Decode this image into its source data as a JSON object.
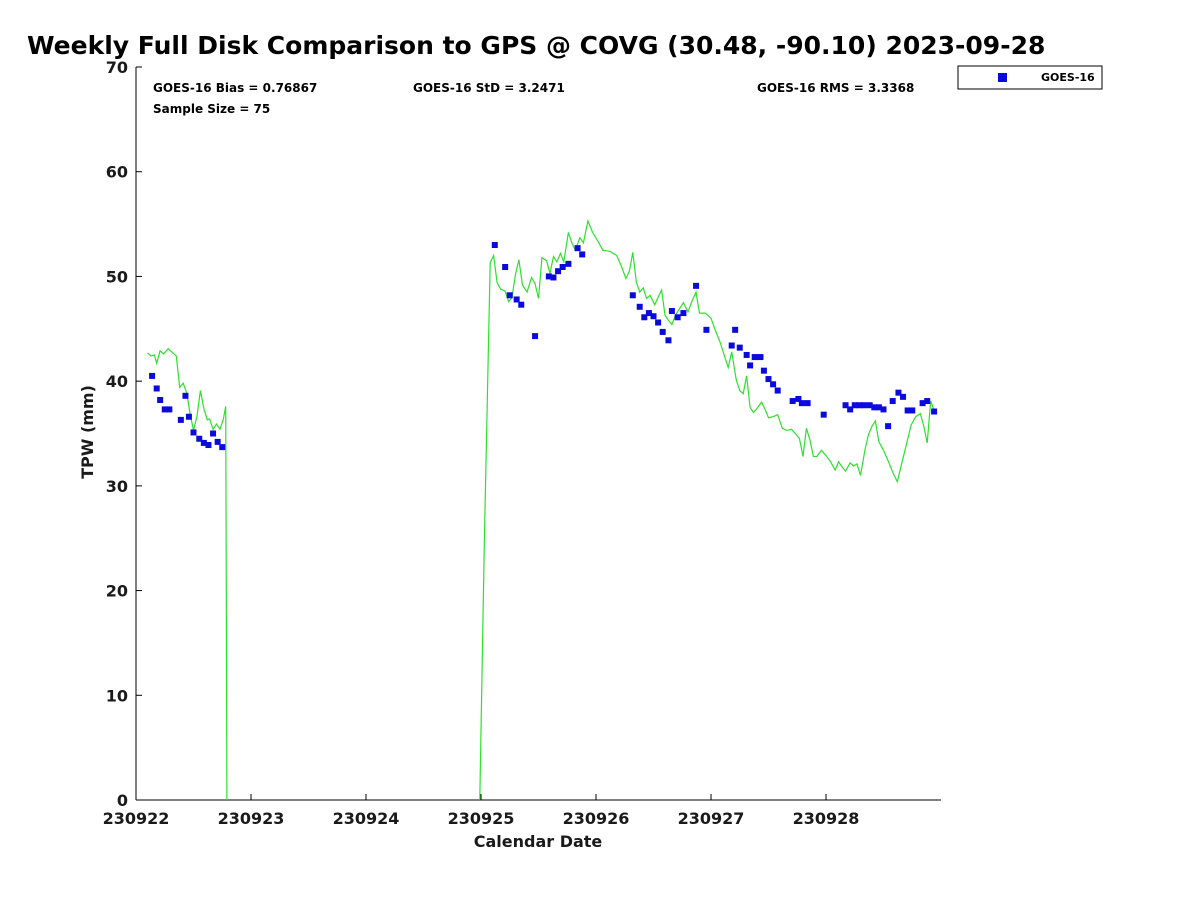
{
  "chart_data": {
    "type": "scatter",
    "title": "Weekly Full Disk Comparison to GPS @ COVG (30.48, -90.10) 2023-09-28",
    "xlabel": "Calendar Date",
    "ylabel": "TPW (mm)",
    "xlim": [
      230922,
      230929
    ],
    "ylim": [
      0,
      70
    ],
    "xticks": [
      230922,
      230923,
      230924,
      230925,
      230926,
      230927,
      230928
    ],
    "xtick_labels": [
      "230922",
      "230923",
      "230924",
      "230925",
      "230926",
      "230927",
      "230928"
    ],
    "yticks": [
      0,
      10,
      20,
      30,
      40,
      50,
      60,
      70
    ],
    "ytick_labels": [
      "0",
      "10",
      "20",
      "30",
      "40",
      "50",
      "60",
      "70"
    ],
    "grid": false,
    "legend_position": "top-right",
    "stats": {
      "bias": "GOES-16 Bias = 0.76867",
      "std": "GOES-16 StD = 3.2471",
      "rms": "GOES-16 RMS = 3.3368",
      "sample": "Sample Size = 75"
    },
    "series": [
      {
        "name": "GOES-16",
        "kind": "scatter",
        "marker": "square",
        "color": "#0a0ae0",
        "points": [
          [
            230922.14,
            40.5
          ],
          [
            230922.18,
            39.3
          ],
          [
            230922.21,
            38.2
          ],
          [
            230922.25,
            37.3
          ],
          [
            230922.29,
            37.3
          ],
          [
            230922.39,
            36.3
          ],
          [
            230922.43,
            38.6
          ],
          [
            230922.46,
            36.6
          ],
          [
            230922.5,
            35.1
          ],
          [
            230922.55,
            34.5
          ],
          [
            230922.59,
            34.1
          ],
          [
            230922.63,
            33.9
          ],
          [
            230922.67,
            35.0
          ],
          [
            230922.71,
            34.2
          ],
          [
            230922.75,
            33.7
          ],
          [
            230925.12,
            53.0
          ],
          [
            230925.21,
            50.9
          ],
          [
            230925.25,
            48.2
          ],
          [
            230925.31,
            47.8
          ],
          [
            230925.35,
            47.3
          ],
          [
            230925.47,
            44.3
          ],
          [
            230925.59,
            50.0
          ],
          [
            230925.63,
            49.9
          ],
          [
            230925.67,
            50.5
          ],
          [
            230925.71,
            50.9
          ],
          [
            230925.76,
            51.2
          ],
          [
            230925.84,
            52.7
          ],
          [
            230925.88,
            52.1
          ],
          [
            230926.32,
            48.2
          ],
          [
            230926.38,
            47.1
          ],
          [
            230926.42,
            46.1
          ],
          [
            230926.46,
            46.5
          ],
          [
            230926.5,
            46.2
          ],
          [
            230926.54,
            45.6
          ],
          [
            230926.58,
            44.7
          ],
          [
            230926.63,
            43.9
          ],
          [
            230926.66,
            46.7
          ],
          [
            230926.71,
            46.1
          ],
          [
            230926.76,
            46.5
          ],
          [
            230926.87,
            49.1
          ],
          [
            230926.96,
            44.9
          ],
          [
            230927.18,
            43.4
          ],
          [
            230927.21,
            44.9
          ],
          [
            230927.25,
            43.2
          ],
          [
            230927.31,
            42.5
          ],
          [
            230927.34,
            41.5
          ],
          [
            230927.38,
            42.3
          ],
          [
            230927.43,
            42.3
          ],
          [
            230927.46,
            41.0
          ],
          [
            230927.5,
            40.2
          ],
          [
            230927.54,
            39.7
          ],
          [
            230927.58,
            39.1
          ],
          [
            230927.71,
            38.1
          ],
          [
            230927.76,
            38.3
          ],
          [
            230927.79,
            37.9
          ],
          [
            230927.84,
            37.9
          ],
          [
            230927.98,
            36.8
          ],
          [
            230928.17,
            37.7
          ],
          [
            230928.21,
            37.3
          ],
          [
            230928.25,
            37.7
          ],
          [
            230928.29,
            37.7
          ],
          [
            230928.33,
            37.7
          ],
          [
            230928.38,
            37.7
          ],
          [
            230928.42,
            37.5
          ],
          [
            230928.46,
            37.5
          ],
          [
            230928.5,
            37.3
          ],
          [
            230928.54,
            35.7
          ],
          [
            230928.58,
            38.1
          ],
          [
            230928.63,
            38.9
          ],
          [
            230928.67,
            38.5
          ],
          [
            230928.71,
            37.2
          ],
          [
            230928.75,
            37.2
          ],
          [
            230928.84,
            37.9
          ],
          [
            230928.88,
            38.1
          ],
          [
            230928.94,
            37.1
          ]
        ]
      },
      {
        "kind": "line",
        "color": "#2ee02e",
        "segments": [
          [
            [
              230922.1,
              42.7
            ],
            [
              230922.13,
              42.4
            ],
            [
              230922.16,
              42.5
            ],
            [
              230922.18,
              41.7
            ],
            [
              230922.21,
              42.9
            ],
            [
              230922.24,
              42.6
            ],
            [
              230922.28,
              43.1
            ],
            [
              230922.31,
              42.8
            ],
            [
              230922.35,
              42.4
            ],
            [
              230922.38,
              39.4
            ],
            [
              230922.41,
              39.8
            ],
            [
              230922.44,
              38.9
            ],
            [
              230922.47,
              36.9
            ],
            [
              230922.5,
              35.3
            ],
            [
              230922.53,
              36.6
            ],
            [
              230922.56,
              39.1
            ],
            [
              230922.59,
              37.4
            ],
            [
              230922.62,
              36.3
            ],
            [
              230922.64,
              36.4
            ],
            [
              230922.67,
              35.4
            ],
            [
              230922.7,
              35.9
            ],
            [
              230922.73,
              35.4
            ],
            [
              230922.76,
              36.4
            ],
            [
              230922.78,
              37.6
            ],
            [
              230922.785,
              20.0
            ],
            [
              230922.79,
              0.0
            ]
          ],
          [
            [
              230924.99,
              0.0
            ],
            [
              230925.03,
              25.0
            ],
            [
              230925.08,
              51.3
            ],
            [
              230925.11,
              52.0
            ],
            [
              230925.14,
              49.4
            ],
            [
              230925.17,
              48.8
            ],
            [
              230925.21,
              48.6
            ],
            [
              230925.24,
              47.6
            ],
            [
              230925.27,
              48.0
            ],
            [
              230925.3,
              50.2
            ],
            [
              230925.33,
              51.6
            ],
            [
              230925.36,
              49.2
            ],
            [
              230925.4,
              48.5
            ],
            [
              230925.44,
              49.9
            ],
            [
              230925.47,
              49.3
            ],
            [
              230925.5,
              47.9
            ],
            [
              230925.53,
              51.8
            ],
            [
              230925.57,
              51.5
            ],
            [
              230925.6,
              50.3
            ],
            [
              230925.63,
              51.9
            ],
            [
              230925.66,
              51.4
            ],
            [
              230925.69,
              52.2
            ],
            [
              230925.72,
              51.4
            ],
            [
              230925.76,
              54.2
            ],
            [
              230925.79,
              53.2
            ],
            [
              230925.82,
              52.5
            ],
            [
              230925.86,
              53.7
            ],
            [
              230925.89,
              53.2
            ],
            [
              230925.93,
              55.3
            ],
            [
              230925.97,
              54.2
            ],
            [
              230926.02,
              53.3
            ],
            [
              230926.06,
              52.5
            ],
            [
              230926.12,
              52.4
            ],
            [
              230926.18,
              52.0
            ],
            [
              230926.22,
              51.0
            ],
            [
              230926.26,
              49.8
            ],
            [
              230926.29,
              50.5
            ],
            [
              230926.32,
              52.3
            ],
            [
              230926.35,
              49.5
            ],
            [
              230926.38,
              48.5
            ],
            [
              230926.41,
              48.9
            ],
            [
              230926.44,
              47.9
            ],
            [
              230926.47,
              48.2
            ],
            [
              230926.51,
              47.3
            ],
            [
              230926.54,
              48.0
            ],
            [
              230926.57,
              48.7
            ],
            [
              230926.6,
              46.3
            ],
            [
              230926.63,
              45.8
            ],
            [
              230926.66,
              45.4
            ],
            [
              230926.69,
              46.3
            ],
            [
              230926.72,
              46.8
            ],
            [
              230926.76,
              47.5
            ],
            [
              230926.8,
              46.6
            ],
            [
              230926.83,
              47.5
            ],
            [
              230926.87,
              48.5
            ],
            [
              230926.9,
              46.5
            ],
            [
              230926.95,
              46.5
            ],
            [
              230927.0,
              46.0
            ],
            [
              230927.04,
              44.8
            ],
            [
              230927.08,
              43.7
            ],
            [
              230927.12,
              42.3
            ],
            [
              230927.15,
              41.3
            ],
            [
              230927.18,
              42.8
            ],
            [
              230927.22,
              40.1
            ],
            [
              230927.25,
              39.1
            ],
            [
              230927.28,
              38.8
            ],
            [
              230927.31,
              40.5
            ],
            [
              230927.34,
              37.5
            ],
            [
              230927.37,
              37.0
            ],
            [
              230927.4,
              37.4
            ],
            [
              230927.44,
              38.0
            ],
            [
              230927.47,
              37.3
            ],
            [
              230927.5,
              36.5
            ],
            [
              230927.54,
              36.6
            ],
            [
              230927.58,
              36.8
            ],
            [
              230927.62,
              35.5
            ],
            [
              230927.66,
              35.3
            ],
            [
              230927.7,
              35.4
            ],
            [
              230927.74,
              34.9
            ],
            [
              230927.77,
              34.5
            ],
            [
              230927.8,
              32.8
            ],
            [
              230927.83,
              35.5
            ],
            [
              230927.86,
              34.4
            ],
            [
              230927.89,
              32.8
            ],
            [
              230927.92,
              32.8
            ],
            [
              230927.96,
              33.4
            ],
            [
              230928.0,
              32.9
            ],
            [
              230928.04,
              32.3
            ],
            [
              230928.08,
              31.5
            ],
            [
              230928.11,
              32.3
            ],
            [
              230928.14,
              31.8
            ],
            [
              230928.17,
              31.4
            ],
            [
              230928.21,
              32.2
            ],
            [
              230928.24,
              31.9
            ],
            [
              230928.27,
              32.1
            ],
            [
              230928.3,
              31.0
            ],
            [
              230928.34,
              33.5
            ],
            [
              230928.37,
              34.9
            ],
            [
              230928.4,
              35.7
            ],
            [
              230928.43,
              36.2
            ],
            [
              230928.46,
              34.2
            ],
            [
              230928.5,
              33.4
            ],
            [
              230928.54,
              32.4
            ],
            [
              230928.58,
              31.3
            ],
            [
              230928.62,
              30.4
            ],
            [
              230928.66,
              32.2
            ],
            [
              230928.7,
              34.0
            ],
            [
              230928.74,
              35.8
            ],
            [
              230928.78,
              36.6
            ],
            [
              230928.82,
              36.9
            ],
            [
              230928.85,
              35.7
            ],
            [
              230928.88,
              34.1
            ],
            [
              230928.91,
              38.1
            ],
            [
              230928.94,
              37.2
            ],
            [
              230928.96,
              37.0
            ]
          ]
        ]
      }
    ]
  }
}
